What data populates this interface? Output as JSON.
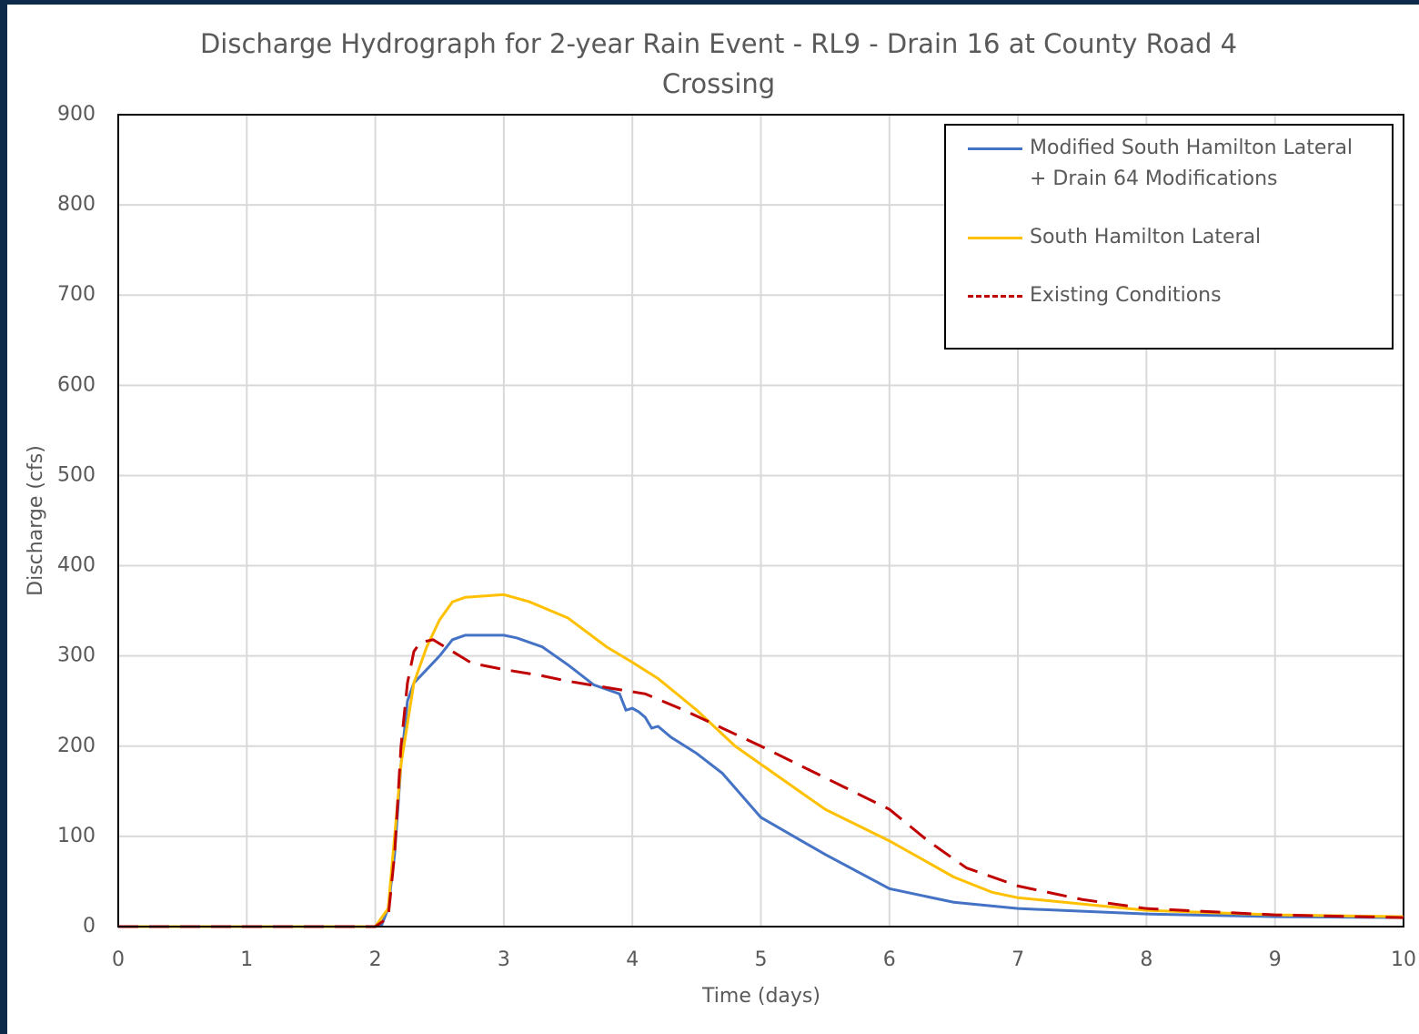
{
  "chart_data": {
    "type": "line",
    "title": "Discharge Hydrograph for 2-year Rain Event - RL9 - Drain 16 at County Road 4 Crossing",
    "x_label": "Time (days)",
    "y_label": "Discharge (cfs)",
    "xlim": [
      0,
      10
    ],
    "xticks": [
      0,
      1,
      2,
      3,
      4,
      5,
      6,
      7,
      8,
      9,
      10
    ],
    "ylim": [
      0,
      900
    ],
    "yticks": [
      0,
      100,
      200,
      300,
      400,
      500,
      600,
      700,
      800,
      900
    ],
    "grid": true,
    "legend": "upper right",
    "series": [
      {
        "name": "Modified South Hamilton Lateral + Drain 64 Modifications",
        "color": "#4472c4",
        "linestyle": "solid",
        "x": [
          0,
          2,
          2.05,
          2.1,
          2.15,
          2.2,
          2.25,
          2.3,
          2.4,
          2.5,
          2.6,
          2.7,
          2.8,
          3.0,
          3.1,
          3.3,
          3.5,
          3.7,
          3.9,
          3.95,
          4.0,
          4.05,
          4.1,
          4.15,
          4.2,
          4.3,
          4.5,
          4.7,
          5.0,
          5.5,
          6.0,
          6.5,
          7,
          8,
          9,
          10
        ],
        "values": [
          0,
          0,
          2,
          20,
          80,
          180,
          250,
          270,
          285,
          300,
          318,
          323,
          323,
          323,
          320,
          310,
          290,
          268,
          258,
          240,
          242,
          238,
          232,
          220,
          222,
          210,
          192,
          170,
          121,
          80,
          42,
          27,
          20,
          14,
          11,
          10
        ]
      },
      {
        "name": "South Hamilton Lateral",
        "color": "#ffc000",
        "linestyle": "solid",
        "x": [
          0,
          2,
          2.1,
          2.2,
          2.3,
          2.4,
          2.5,
          2.6,
          2.7,
          3.0,
          3.2,
          3.5,
          3.8,
          4.0,
          4.2,
          4.5,
          4.8,
          5.0,
          5.5,
          6.0,
          6.5,
          6.8,
          7,
          8,
          9,
          10
        ],
        "values": [
          0,
          0,
          20,
          180,
          270,
          310,
          340,
          360,
          365,
          368,
          360,
          342,
          310,
          293,
          275,
          240,
          200,
          180,
          130,
          95,
          55,
          38,
          32,
          18,
          13,
          11
        ]
      },
      {
        "name": "Existing Conditions",
        "color": "#c00000",
        "linestyle": "dashed",
        "x": [
          0,
          2,
          2.1,
          2.15,
          2.2,
          2.25,
          2.3,
          2.35,
          2.45,
          2.6,
          2.75,
          3.0,
          3.3,
          3.5,
          3.8,
          4.1,
          4.4,
          4.7,
          5.0,
          5.5,
          6.0,
          6.3,
          6.6,
          7,
          7.5,
          8,
          9,
          10
        ],
        "values": [
          0,
          0,
          10,
          80,
          200,
          270,
          305,
          315,
          318,
          305,
          292,
          285,
          278,
          272,
          265,
          258,
          240,
          220,
          200,
          165,
          130,
          95,
          65,
          45,
          30,
          20,
          13,
          10
        ]
      }
    ]
  }
}
